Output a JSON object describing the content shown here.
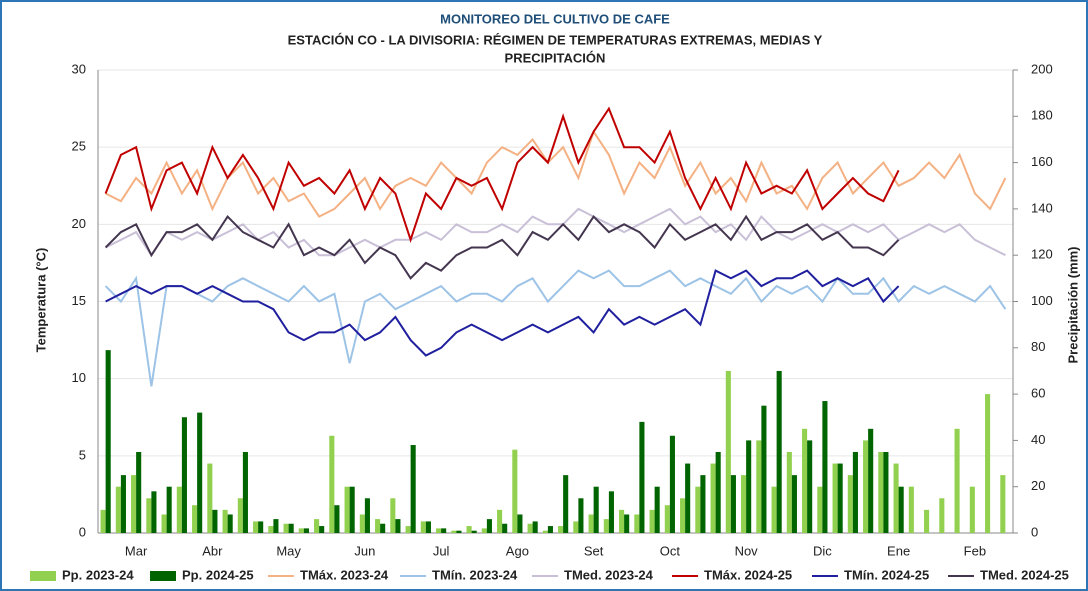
{
  "chart_data": {
    "type": "bar-line",
    "title": "MONITOREO DEL CULTIVO DE CAFE",
    "subtitle": [
      "ESTACIÓN  CO - LA DIVISORIA: RÉGIMEN DE TEMPERATURAS EXTREMAS, MEDIAS Y",
      "PRECIPITACIÓN"
    ],
    "y_label": "Temperatura (°C)",
    "y2_label": "Precipitación (mm)",
    "ylim": [
      0,
      30
    ],
    "yticks": [
      0,
      5,
      10,
      15,
      20,
      25,
      30
    ],
    "y2lim": [
      0,
      200
    ],
    "y2ticks": [
      0,
      20,
      40,
      60,
      80,
      100,
      120,
      140,
      160,
      180,
      200
    ],
    "grid": true,
    "legend": "bottom",
    "categories": [
      null,
      null,
      "Mar",
      null,
      null,
      null,
      null,
      "Abr",
      null,
      null,
      null,
      null,
      "May",
      null,
      null,
      null,
      null,
      "Jun",
      null,
      null,
      null,
      null,
      "Jul",
      null,
      null,
      null,
      null,
      "Ago",
      null,
      null,
      null,
      null,
      "Set",
      null,
      null,
      null,
      null,
      "Oct",
      null,
      null,
      null,
      null,
      "Nov",
      null,
      null,
      null,
      null,
      "Dic",
      null,
      null,
      null,
      null,
      "Ene",
      null,
      null,
      null,
      null,
      "Feb",
      null,
      null
    ],
    "series": [
      {
        "name": "Pp. 2023-24",
        "type": "bar",
        "axis": "y2",
        "color": "#92d050",
        "values": [
          10,
          20,
          25,
          15,
          8,
          20,
          12,
          30,
          10,
          15,
          5,
          3,
          4,
          2,
          6,
          42,
          20,
          8,
          6,
          15,
          3,
          5,
          2,
          1,
          3,
          2,
          10,
          36,
          4,
          1,
          3,
          5,
          8,
          6,
          10,
          8,
          10,
          12,
          15,
          20,
          30,
          70,
          25,
          40,
          20,
          35,
          45,
          20,
          30,
          25,
          40,
          35,
          30,
          20,
          10,
          15,
          45,
          20,
          60,
          25
        ]
      },
      {
        "name": "Pp. 2024-25",
        "type": "bar",
        "axis": "y2",
        "color": "#006400",
        "values": [
          79,
          25,
          35,
          18,
          20,
          50,
          52,
          10,
          8,
          35,
          5,
          6,
          4,
          2,
          3,
          12,
          20,
          15,
          4,
          6,
          38,
          5,
          2,
          1,
          1,
          6,
          4,
          8,
          5,
          3,
          25,
          15,
          20,
          18,
          8,
          48,
          20,
          42,
          30,
          25,
          35,
          25,
          40,
          55,
          70,
          25,
          40,
          57,
          30,
          35,
          45,
          35,
          20,
          null,
          null,
          null,
          null,
          null,
          null,
          null
        ]
      },
      {
        "name": "TMáx. 2023-24",
        "type": "line",
        "color": "#f4b183",
        "values": [
          22,
          21.5,
          23,
          22,
          24,
          22,
          23.5,
          21,
          23,
          24,
          22,
          23,
          21.5,
          22,
          20.5,
          21,
          22,
          23,
          21,
          22.5,
          23,
          22.5,
          24,
          23,
          22,
          24,
          25,
          24.5,
          25.5,
          24,
          25,
          23,
          26,
          24.5,
          22,
          24,
          23,
          25,
          22.5,
          24,
          22,
          23,
          21.5,
          24,
          22,
          22.5,
          21,
          23,
          24,
          22,
          23,
          24,
          22.5,
          23,
          24,
          23,
          24.5,
          22,
          21,
          23
        ]
      },
      {
        "name": "TMín. 2023-24",
        "type": "line",
        "color": "#9dc3e6",
        "values": [
          16,
          15,
          16.5,
          9.5,
          16,
          16,
          15.5,
          15,
          16,
          16.5,
          16,
          15.5,
          15,
          16,
          15,
          15.5,
          11,
          15,
          15.5,
          14.5,
          15,
          15.5,
          16,
          15,
          15.5,
          15.5,
          15,
          16,
          16.5,
          15,
          16,
          17,
          16.5,
          17,
          16,
          16,
          16.5,
          17,
          16,
          16.5,
          16,
          15.5,
          16.5,
          15,
          16,
          15.5,
          16,
          15,
          16.5,
          15.5,
          15.5,
          16.5,
          15,
          16,
          15.5,
          16,
          15.5,
          15,
          16,
          14.5
        ]
      },
      {
        "name": "TMed. 2023-24",
        "type": "line",
        "color": "#c9c0d8",
        "values": [
          18.5,
          19,
          19.5,
          18,
          19.5,
          19,
          19.5,
          19,
          19.5,
          20,
          19,
          19.5,
          18.5,
          19,
          18,
          18,
          18.5,
          19,
          18.5,
          19,
          19,
          19.5,
          19,
          20,
          19.5,
          19.5,
          20,
          19.5,
          20.5,
          20,
          20,
          21,
          20.5,
          20,
          19.5,
          20,
          20.5,
          21,
          20,
          20.5,
          19.5,
          20,
          19,
          20.5,
          19.5,
          19,
          19.5,
          20,
          19.5,
          20,
          19.5,
          20,
          19,
          19.5,
          20,
          19.5,
          20,
          19,
          18.5,
          18
        ]
      },
      {
        "name": "TMáx. 2024-25",
        "type": "line",
        "color": "#c00000",
        "values": [
          22,
          24.5,
          25,
          21,
          23.5,
          24,
          22,
          25,
          23,
          24.5,
          23,
          21,
          24,
          22.5,
          23,
          22,
          23.5,
          21,
          23,
          22,
          19,
          22,
          21,
          23,
          22.5,
          23,
          21,
          24,
          25,
          24,
          27,
          24,
          26,
          27.5,
          25,
          25,
          24,
          26,
          23,
          21,
          23,
          21,
          24,
          22,
          22.5,
          22,
          23.5,
          21,
          22,
          23,
          22,
          21.5,
          23.5,
          null,
          null,
          null,
          null,
          null,
          null,
          null
        ]
      },
      {
        "name": "TMín. 2024-25",
        "type": "line",
        "color": "#1f1f9f",
        "values": [
          15,
          15.5,
          16,
          15.5,
          16,
          16,
          15.5,
          16,
          15.5,
          15,
          15,
          14.5,
          13,
          12.5,
          13,
          13,
          13.5,
          12.5,
          13,
          14,
          12.5,
          11.5,
          12,
          13,
          13.5,
          13,
          12.5,
          13,
          13.5,
          13,
          13.5,
          14,
          13,
          14.5,
          13.5,
          14,
          13.5,
          14,
          14.5,
          13.5,
          17,
          16.5,
          17,
          16,
          16.5,
          16.5,
          17,
          16,
          16.5,
          16,
          16.5,
          15,
          16,
          null,
          null,
          null,
          null,
          null,
          null,
          null
        ]
      },
      {
        "name": "TMed. 2024-25",
        "type": "line",
        "color": "#44364f",
        "values": [
          18.5,
          19.5,
          20,
          18,
          19.5,
          19.5,
          20,
          19,
          20.5,
          19.5,
          19,
          18.5,
          20,
          18,
          18.5,
          18,
          19,
          17.5,
          18.5,
          18,
          16.5,
          17.5,
          17,
          18,
          18.5,
          18.5,
          19,
          18,
          19.5,
          19,
          20,
          19,
          20.5,
          19.5,
          20,
          19.5,
          18.5,
          20,
          19,
          19.5,
          20,
          19,
          20.5,
          19,
          19.5,
          19.5,
          20,
          19,
          19.5,
          18.5,
          18.5,
          18,
          19,
          null,
          null,
          null,
          null,
          null,
          null,
          null
        ]
      }
    ]
  }
}
